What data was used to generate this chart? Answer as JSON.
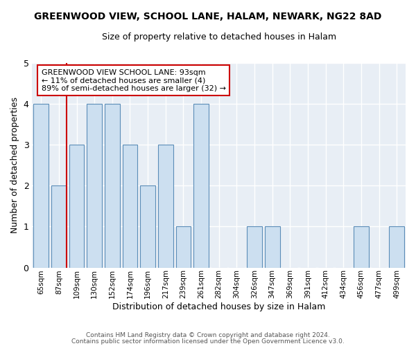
{
  "title": "GREENWOOD VIEW, SCHOOL LANE, HALAM, NEWARK, NG22 8AD",
  "subtitle": "Size of property relative to detached houses in Halam",
  "xlabel": "Distribution of detached houses by size in Halam",
  "ylabel": "Number of detached properties",
  "bins": [
    "65sqm",
    "87sqm",
    "109sqm",
    "130sqm",
    "152sqm",
    "174sqm",
    "196sqm",
    "217sqm",
    "239sqm",
    "261sqm",
    "282sqm",
    "304sqm",
    "326sqm",
    "347sqm",
    "369sqm",
    "391sqm",
    "412sqm",
    "434sqm",
    "456sqm",
    "477sqm",
    "499sqm"
  ],
  "counts": [
    4,
    2,
    3,
    4,
    4,
    3,
    2,
    3,
    1,
    4,
    0,
    0,
    1,
    1,
    0,
    0,
    0,
    0,
    1,
    0,
    1
  ],
  "bar_color": "#ccdff0",
  "bar_edge_color": "#5b8db8",
  "vline_color": "#cc0000",
  "vline_x_index": 1,
  "annotation_title": "GREENWOOD VIEW SCHOOL LANE: 93sqm",
  "annotation_line1": "← 11% of detached houses are smaller (4)",
  "annotation_line2": "89% of semi-detached houses are larger (32) →",
  "annotation_box_color": "#ffffff",
  "annotation_box_edge": "#cc0000",
  "ylim": [
    0,
    5
  ],
  "yticks": [
    0,
    1,
    2,
    3,
    4,
    5
  ],
  "footer1": "Contains HM Land Registry data © Crown copyright and database right 2024.",
  "footer2": "Contains public sector information licensed under the Open Government Licence v3.0.",
  "bg_color": "#ffffff",
  "plot_bg_color": "#e8eef5",
  "grid_color": "#ffffff",
  "title_fontsize": 10,
  "subtitle_fontsize": 9
}
